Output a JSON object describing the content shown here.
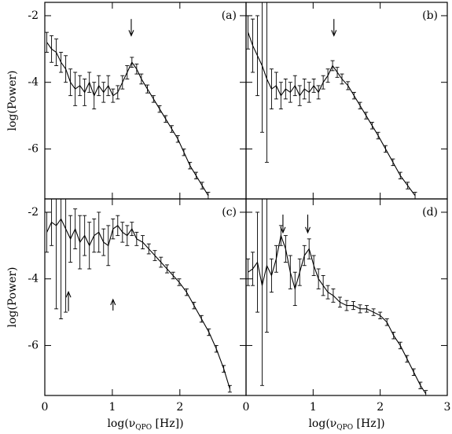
{
  "chart_data": [
    {
      "type": "line",
      "title": "(a)",
      "y_label": "log(Power)",
      "xlim": [
        0,
        2.98
      ],
      "ylim": [
        -7.5,
        -1.6
      ],
      "xticks": [
        0,
        1,
        2
      ],
      "yticks": [
        -2,
        -4,
        -6
      ],
      "show_xticklabels": false,
      "show_yticklabels": true,
      "series": [
        {
          "color": "#000000",
          "x": [
            0.03,
            0.1,
            0.17,
            0.24,
            0.31,
            0.38,
            0.45,
            0.52,
            0.59,
            0.66,
            0.73,
            0.8,
            0.87,
            0.94,
            1.01,
            1.08,
            1.15,
            1.22,
            1.29,
            1.36,
            1.43,
            1.52,
            1.61,
            1.7,
            1.79,
            1.88,
            1.97,
            2.06,
            2.15,
            2.24,
            2.33,
            2.42
          ],
          "values": [
            -2.8,
            -3.0,
            -3.1,
            -3.4,
            -3.6,
            -4.0,
            -4.2,
            -4.1,
            -4.3,
            -4.0,
            -4.4,
            -4.1,
            -4.3,
            -4.1,
            -4.4,
            -4.3,
            -4.0,
            -3.7,
            -3.4,
            -3.6,
            -3.9,
            -4.2,
            -4.5,
            -4.8,
            -5.1,
            -5.4,
            -5.7,
            -6.1,
            -6.5,
            -6.8,
            -7.1,
            -7.4
          ],
          "errors": [
            0.3,
            0.4,
            0.4,
            0.3,
            0.4,
            0.4,
            0.5,
            0.3,
            0.4,
            0.3,
            0.4,
            0.3,
            0.3,
            0.3,
            0.2,
            0.2,
            0.2,
            0.2,
            0.15,
            0.15,
            0.15,
            0.12,
            0.1,
            0.1,
            0.1,
            0.1,
            0.1,
            0.1,
            0.1,
            0.1,
            0.1,
            0.1
          ]
        }
      ],
      "arrows": [
        {
          "x": 1.28,
          "y_from": -2.1,
          "y_to": -2.6
        }
      ]
    },
    {
      "type": "line",
      "title": "(b)",
      "xlim": [
        0,
        3
      ],
      "ylim": [
        -7.5,
        -1.6
      ],
      "xticks": [
        0,
        1,
        2,
        3
      ],
      "yticks": [
        -2,
        -4,
        -6
      ],
      "show_xticklabels": false,
      "show_yticklabels": false,
      "series": [
        {
          "color": "#000000",
          "x": [
            0.03,
            0.1,
            0.17,
            0.24,
            0.31,
            0.38,
            0.45,
            0.52,
            0.59,
            0.66,
            0.73,
            0.8,
            0.87,
            0.94,
            1.01,
            1.08,
            1.15,
            1.22,
            1.29,
            1.36,
            1.43,
            1.52,
            1.61,
            1.7,
            1.79,
            1.88,
            1.97,
            2.08,
            2.19,
            2.3,
            2.41,
            2.52
          ],
          "values": [
            -2.5,
            -2.9,
            -3.2,
            -3.5,
            -3.9,
            -4.2,
            -4.1,
            -4.4,
            -4.2,
            -4.3,
            -4.1,
            -4.4,
            -4.2,
            -4.3,
            -4.1,
            -4.3,
            -4.0,
            -3.8,
            -3.5,
            -3.7,
            -3.9,
            -4.1,
            -4.4,
            -4.7,
            -5.0,
            -5.3,
            -5.6,
            -6.0,
            -6.4,
            -6.8,
            -7.1,
            -7.4
          ],
          "errors": [
            0.5,
            0.8,
            1.2,
            2.0,
            2.5,
            0.6,
            0.4,
            0.4,
            0.3,
            0.3,
            0.3,
            0.3,
            0.3,
            0.3,
            0.2,
            0.2,
            0.2,
            0.2,
            0.15,
            0.15,
            0.15,
            0.12,
            0.1,
            0.1,
            0.1,
            0.1,
            0.1,
            0.1,
            0.1,
            0.1,
            0.1,
            0.1
          ]
        }
      ],
      "arrows": [
        {
          "x": 1.31,
          "y_from": -2.1,
          "y_to": -2.6
        }
      ]
    },
    {
      "type": "line",
      "title": "(c)",
      "y_label": "log(Power)",
      "x_label": {
        "prefix": "log(ν",
        "subscript": "QPO",
        "suffix": " [Hz])"
      },
      "xlim": [
        0,
        2.98
      ],
      "ylim": [
        -7.5,
        -1.6
      ],
      "xticks": [
        0,
        1,
        2
      ],
      "yticks": [
        -2,
        -4,
        -6
      ],
      "show_xticklabels": true,
      "show_yticklabels": true,
      "series": [
        {
          "color": "#000000",
          "x": [
            0.03,
            0.1,
            0.17,
            0.24,
            0.31,
            0.38,
            0.45,
            0.52,
            0.59,
            0.66,
            0.73,
            0.8,
            0.87,
            0.94,
            1.01,
            1.08,
            1.15,
            1.22,
            1.29,
            1.36,
            1.45,
            1.54,
            1.63,
            1.72,
            1.81,
            1.9,
            1.99,
            2.1,
            2.21,
            2.32,
            2.43,
            2.54,
            2.65,
            2.74
          ],
          "values": [
            -2.6,
            -2.3,
            -2.4,
            -2.2,
            -2.5,
            -2.8,
            -2.5,
            -2.9,
            -2.7,
            -3.0,
            -2.7,
            -2.6,
            -2.9,
            -3.0,
            -2.5,
            -2.4,
            -2.6,
            -2.7,
            -2.5,
            -2.8,
            -2.9,
            -3.1,
            -3.3,
            -3.5,
            -3.7,
            -3.9,
            -4.1,
            -4.4,
            -4.8,
            -5.2,
            -5.6,
            -6.1,
            -6.7,
            -7.3
          ],
          "errors": [
            0.6,
            0.7,
            2.5,
            3.0,
            2.5,
            0.7,
            0.6,
            0.8,
            0.6,
            0.7,
            0.5,
            0.6,
            0.4,
            0.6,
            0.3,
            0.3,
            0.3,
            0.3,
            0.2,
            0.2,
            0.2,
            0.15,
            0.15,
            0.15,
            0.12,
            0.1,
            0.1,
            0.1,
            0.1,
            0.1,
            0.1,
            0.1,
            0.1,
            0.1
          ]
        }
      ],
      "arrows": [
        {
          "x": 0.35,
          "y_from": -4.97,
          "y_to": -4.39
        },
        {
          "x": 1.01,
          "y_from": -4.95,
          "y_to": -4.62
        }
      ]
    },
    {
      "type": "line",
      "title": "(d)",
      "x_label": {
        "prefix": "log(ν",
        "subscript": "QPO",
        "suffix": " [Hz])"
      },
      "xlim": [
        0,
        3
      ],
      "ylim": [
        -7.5,
        -1.6
      ],
      "xticks": [
        0,
        1,
        2,
        3
      ],
      "yticks": [
        -2,
        -4,
        -6
      ],
      "show_xticklabels": true,
      "show_yticklabels": false,
      "series": [
        {
          "color": "#000000",
          "x": [
            0.03,
            0.1,
            0.17,
            0.24,
            0.31,
            0.38,
            0.45,
            0.52,
            0.59,
            0.66,
            0.73,
            0.8,
            0.87,
            0.94,
            1.01,
            1.08,
            1.15,
            1.22,
            1.3,
            1.4,
            1.5,
            1.6,
            1.7,
            1.8,
            1.9,
            2.0,
            2.1,
            2.2,
            2.3,
            2.4,
            2.5,
            2.6,
            2.68
          ],
          "values": [
            -3.8,
            -3.7,
            -3.5,
            -4.2,
            -3.6,
            -3.9,
            -3.4,
            -2.7,
            -3.1,
            -3.8,
            -4.3,
            -3.8,
            -3.3,
            -3.1,
            -3.6,
            -4.0,
            -4.2,
            -4.4,
            -4.5,
            -4.7,
            -4.8,
            -4.8,
            -4.9,
            -4.9,
            -5.0,
            -5.1,
            -5.3,
            -5.7,
            -6.0,
            -6.4,
            -6.8,
            -7.2,
            -7.45
          ],
          "errors": [
            0.4,
            0.5,
            1.5,
            3.0,
            2.0,
            0.5,
            0.4,
            0.3,
            0.4,
            0.5,
            0.5,
            0.4,
            0.3,
            0.3,
            0.3,
            0.3,
            0.3,
            0.2,
            0.2,
            0.15,
            0.15,
            0.12,
            0.12,
            0.1,
            0.1,
            0.1,
            0.1,
            0.1,
            0.1,
            0.1,
            0.1,
            0.1,
            0.1
          ]
        }
      ],
      "arrows": [
        {
          "x": 0.55,
          "y_from": -2.07,
          "y_to": -2.61
        },
        {
          "x": 0.92,
          "y_from": -2.07,
          "y_to": -2.61
        }
      ]
    }
  ]
}
